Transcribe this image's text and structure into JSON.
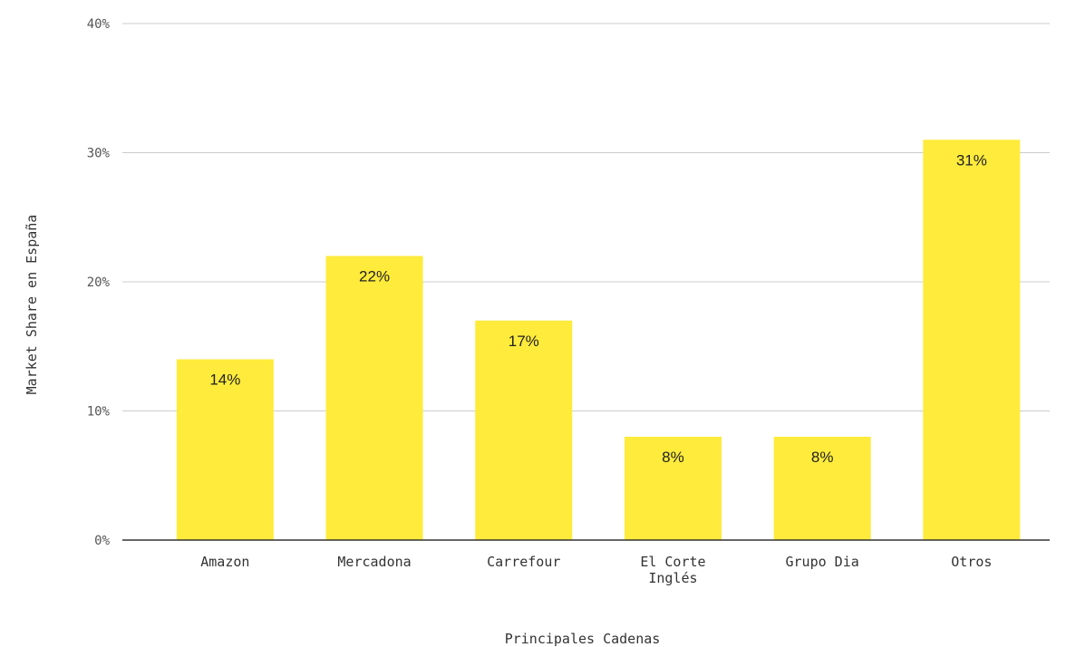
{
  "chart_data": {
    "type": "bar",
    "categories": [
      "Amazon",
      "Mercadona",
      "Carrefour",
      "El Corte Inglés",
      "Grupo Dia",
      "Otros"
    ],
    "category_lines": [
      [
        "Amazon"
      ],
      [
        "Mercadona"
      ],
      [
        "Carrefour"
      ],
      [
        "El Corte",
        "Inglés"
      ],
      [
        "Grupo Dia"
      ],
      [
        "Otros"
      ]
    ],
    "values": [
      14,
      22,
      17,
      8,
      8,
      31
    ],
    "data_labels": [
      "14%",
      "22%",
      "17%",
      "8%",
      "8%",
      "31%"
    ],
    "yticks": [
      0,
      10,
      20,
      30,
      40
    ],
    "ytick_labels": [
      "0%",
      "10%",
      "20%",
      "30%",
      "40%"
    ],
    "ylim": [
      0,
      40
    ],
    "xlabel": "Principales Cadenas",
    "ylabel": "Market Share en España",
    "title": "",
    "grid": true,
    "legend": "none",
    "bar_color": "#FFEB3B"
  }
}
